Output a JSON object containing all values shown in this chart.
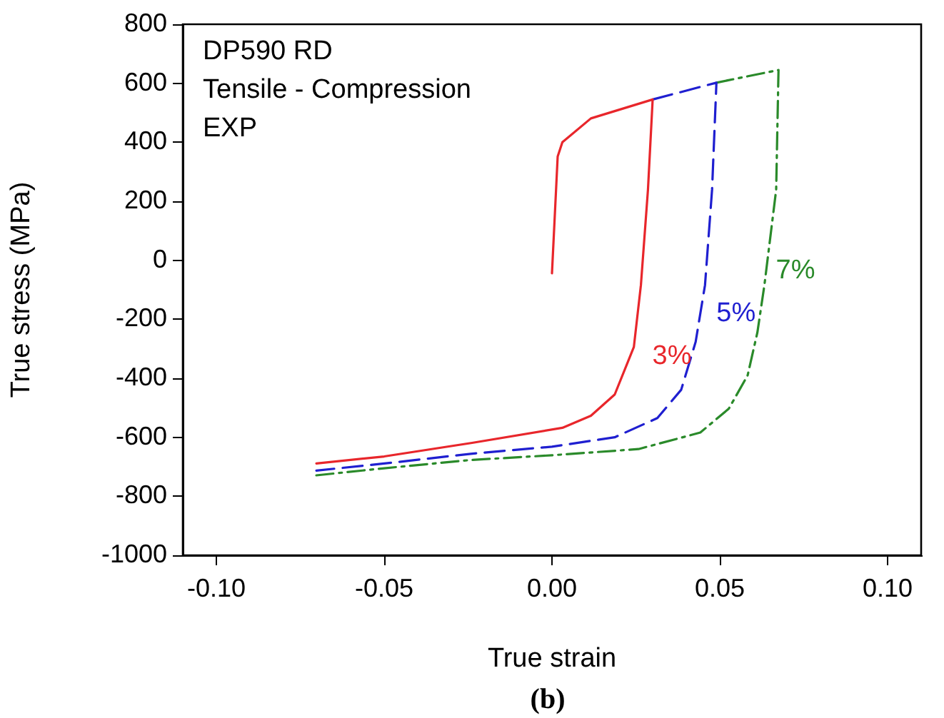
{
  "chart_data": {
    "type": "line",
    "xlabel": "True strain",
    "ylabel": "True stress (MPa)",
    "annotations": [
      "DP590 RD",
      "Tensile - Compression",
      "EXP",
      "(b)"
    ],
    "xlim": [
      -0.11,
      0.11
    ],
    "xticks": [
      {
        "value": -0.1,
        "label": "-0.10"
      },
      {
        "value": -0.05,
        "label": "-0.05"
      },
      {
        "value": 0,
        "label": "0.00"
      },
      {
        "value": 0.05,
        "label": "0.05"
      },
      {
        "value": 0.1,
        "label": "0.10"
      }
    ],
    "ylim": [
      -1000,
      800
    ],
    "yticks": [
      -1000,
      -800,
      -600,
      -400,
      -200,
      0,
      200,
      400,
      600,
      800
    ],
    "grid": false,
    "legend": false,
    "marker": "none",
    "series": [
      {
        "name": "3%",
        "color": "#e8262b",
        "line_style": "solid",
        "x": [
          0,
          0.0017,
          0.0031,
          0.0116,
          0.03,
          0.0286,
          0.0265,
          0.0244,
          0.0187,
          0.0116,
          0.0031,
          -0.0238,
          -0.05,
          -0.0702
        ],
        "values": [
          -44,
          352,
          400,
          481,
          545,
          239,
          -84,
          -294,
          -455,
          -527,
          -568,
          -619,
          -665,
          -689
        ]
      },
      {
        "name": "5%",
        "color": "#1f1fd0",
        "line_style": "dashed",
        "x": [
          0.03,
          0.049,
          0.0477,
          0.0456,
          0.0428,
          0.0385,
          0.0314,
          0.0187,
          0,
          -0.0242,
          -0.05,
          -0.0702
        ],
        "values": [
          545,
          602,
          239,
          -84,
          -277,
          -439,
          -535,
          -600,
          -632,
          -656,
          -689,
          -713
        ]
      },
      {
        "name": "7%",
        "color": "#2a8a2a",
        "line_style": "dashdot",
        "x": [
          0.049,
          0.0675,
          0.0668,
          0.0633,
          0.0612,
          0.0583,
          0.0527,
          0.0442,
          0.0258,
          0,
          -0.0242,
          -0.05,
          -0.0702
        ],
        "values": [
          602,
          645,
          239,
          -84,
          -245,
          -390,
          -503,
          -584,
          -640,
          -661,
          -677,
          -705,
          -729
        ]
      }
    ]
  }
}
